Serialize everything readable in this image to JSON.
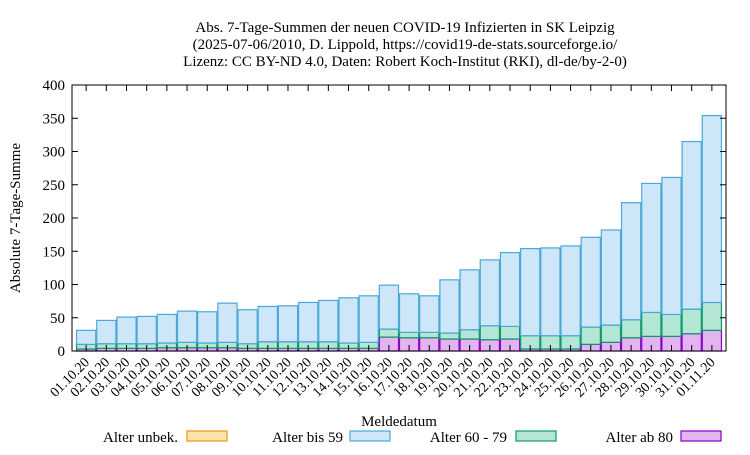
{
  "title_lines": [
    "Abs. 7-Tage-Summen der neuen COVID-19 Infizierten in SK Leipzig",
    "(2025-07-06/2010, D. Lippold, https://covid19-de-stats.sourceforge.io/",
    "Lizenz: CC BY-ND 4.0, Daten: Robert Koch-Institut (RKI), dl-de/by-2-0)"
  ],
  "chart_data": {
    "type": "bar",
    "stacked": true,
    "title": "Abs. 7-Tage-Summen der neuen COVID-19 Infizierten in SK Leipzig",
    "xlabel": "Meldedatum",
    "ylabel": "Absolute 7-Tage-Summe",
    "ylim": [
      0,
      400
    ],
    "yticks": [
      0,
      50,
      100,
      150,
      200,
      250,
      300,
      350,
      400
    ],
    "grid": false,
    "legend_position": "bottom",
    "categories": [
      "01.10.20",
      "02.10.20",
      "03.10.20",
      "04.10.20",
      "05.10.20",
      "06.10.20",
      "07.10.20",
      "08.10.20",
      "09.10.20",
      "10.10.20",
      "11.10.20",
      "12.10.20",
      "13.10.20",
      "14.10.20",
      "15.10.20",
      "16.10.20",
      "17.10.20",
      "18.10.20",
      "19.10.20",
      "20.10.20",
      "21.10.20",
      "22.10.20",
      "23.10.20",
      "24.10.20",
      "25.10.20",
      "26.10.20",
      "27.10.20",
      "28.10.20",
      "29.10.20",
      "30.10.20",
      "31.10.20",
      "01.11.20"
    ],
    "series": [
      {
        "name": "Alter ab 80",
        "color": "#e2b5f0",
        "edge": "#8a00c8",
        "values": [
          3,
          4,
          4,
          4,
          5,
          5,
          5,
          5,
          4,
          4,
          4,
          4,
          4,
          4,
          4,
          21,
          20,
          20,
          18,
          18,
          17,
          18,
          3,
          3,
          3,
          10,
          13,
          20,
          22,
          22,
          26,
          31
        ]
      },
      {
        "name": "Alter 60 - 79",
        "color": "#b3e6d4",
        "edge": "#0e9a6b",
        "values": [
          7,
          7,
          7,
          7,
          7,
          8,
          7,
          8,
          7,
          10,
          10,
          10,
          10,
          8,
          9,
          12,
          8,
          8,
          9,
          14,
          21,
          19,
          20,
          20,
          20,
          26,
          26,
          27,
          36,
          33,
          37,
          42
        ]
      },
      {
        "name": "Alter bis 59",
        "color": "#cde7f9",
        "edge": "#4aa8d8",
        "values": [
          21,
          35,
          40,
          41,
          43,
          47,
          47,
          59,
          51,
          53,
          54,
          59,
          62,
          68,
          70,
          66,
          58,
          55,
          80,
          90,
          99,
          111,
          131,
          132,
          135,
          135,
          143,
          176,
          194,
          206,
          252,
          281
        ]
      },
      {
        "name": "Alter unbek.",
        "color": "#fbe2a8",
        "edge": "#e69a14",
        "values": [
          0,
          0,
          0,
          0,
          0,
          0,
          0,
          0,
          0,
          0,
          0,
          0,
          0,
          0,
          0,
          0,
          0,
          0,
          0,
          0,
          0,
          0,
          0,
          0,
          0,
          0,
          0,
          0,
          0,
          0,
          0,
          0
        ]
      }
    ],
    "legend_order": [
      "Alter unbek.",
      "Alter bis 59",
      "Alter 60 - 79",
      "Alter ab 80"
    ]
  }
}
